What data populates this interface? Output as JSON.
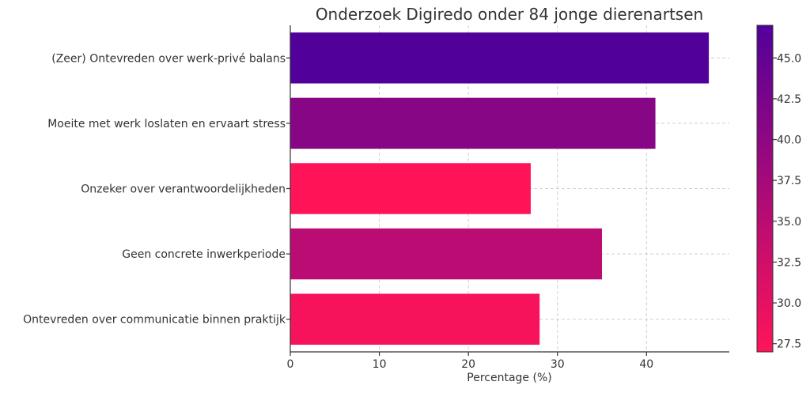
{
  "chart_data": {
    "type": "bar",
    "orientation": "horizontal",
    "title": "Onderzoek Digiredo onder 84 jonge dierenartsen",
    "xlabel": "Percentage (%)",
    "ylabel": "",
    "categories": [
      "(Zeer) Ontevreden over werk-privé balans",
      "Moeite met werk loslaten en ervaart stress",
      "Onzeker over verantwoordelijkheden",
      "Geen concrete inwerkperiode",
      "Ontevreden over communicatie binnen praktijk"
    ],
    "values": [
      47,
      41,
      27,
      35,
      28
    ],
    "xlim": [
      0,
      49.3
    ],
    "xticks": [
      0,
      10,
      20,
      30,
      40
    ],
    "xtick_labels": [
      "0",
      "10",
      "20",
      "30",
      "40"
    ],
    "grid": true,
    "colormap": {
      "min": 27,
      "max": 47,
      "low_color": "#ff1458",
      "high_color": "#52009a",
      "ticks": [
        27.5,
        30.0,
        32.5,
        35.0,
        37.5,
        40.0,
        42.5,
        45.0
      ],
      "tick_labels": [
        "27.5",
        "30.0",
        "32.5",
        "35.0",
        "37.5",
        "40.0",
        "42.5",
        "45.0"
      ]
    }
  }
}
